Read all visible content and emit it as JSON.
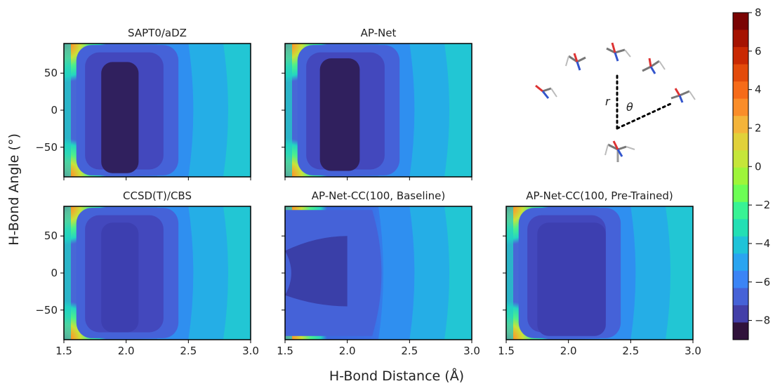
{
  "figure": {
    "xlabel": "H-Bond Distance (Å)",
    "ylabel": "H-Bond Angle (°)",
    "inset_labels": {
      "r": "r",
      "theta": "θ"
    }
  },
  "chart_data": [
    {
      "type": "heatmap",
      "title": "SAPT0/aDZ",
      "xlim": [
        1.5,
        3.0
      ],
      "ylim": [
        -90,
        90
      ],
      "x_ticks": [
        "1.5",
        "2.0",
        "2.5",
        "3.0"
      ],
      "x_ticks_shown": false,
      "y_ticks": [
        "50",
        "0",
        "−50"
      ],
      "y_ticks_shown": true,
      "min_level_region": {
        "x": [
          1.8,
          2.1
        ],
        "y": [
          -85,
          65
        ]
      }
    },
    {
      "type": "heatmap",
      "title": "AP-Net",
      "xlim": [
        1.5,
        3.0
      ],
      "ylim": [
        -90,
        90
      ],
      "x_ticks": [
        "1.5",
        "2.0",
        "2.5",
        "3.0"
      ],
      "x_ticks_shown": false,
      "y_ticks": [
        "50",
        "0",
        "−50"
      ],
      "y_ticks_shown": false,
      "min_level_region": {
        "x": [
          1.78,
          2.1
        ],
        "y": [
          -82,
          70
        ]
      }
    },
    {
      "type": "heatmap",
      "title": "CCSD(T)/CBS",
      "xlim": [
        1.5,
        3.0
      ],
      "ylim": [
        -90,
        90
      ],
      "x_ticks": [
        "1.5",
        "2.0",
        "2.5",
        "3.0"
      ],
      "x_ticks_shown": true,
      "y_ticks": [
        "50",
        "0",
        "−50"
      ],
      "y_ticks_shown": true,
      "min_level_region": {
        "x": [
          1.8,
          2.1
        ],
        "y": [
          -80,
          68
        ]
      }
    },
    {
      "type": "heatmap",
      "title": "AP-Net-CC(100, Baseline)",
      "xlim": [
        1.5,
        3.0
      ],
      "ylim": [
        -90,
        90
      ],
      "x_ticks": [
        "1.5",
        "2.0",
        "2.5",
        "3.0"
      ],
      "x_ticks_shown": true,
      "y_ticks": [
        "50",
        "0",
        "−50"
      ],
      "y_ticks_shown": false,
      "min_level_region": {
        "x": [
          1.5,
          2.0
        ],
        "y": [
          -45,
          50
        ]
      }
    },
    {
      "type": "heatmap",
      "title": "AP-Net-CC(100, Pre-Trained)",
      "xlim": [
        1.5,
        3.0
      ],
      "ylim": [
        -90,
        90
      ],
      "x_ticks": [
        "1.5",
        "2.0",
        "2.5",
        "3.0"
      ],
      "x_ticks_shown": true,
      "y_ticks": [
        "50",
        "0",
        "−50"
      ],
      "y_ticks_shown": false,
      "min_level_region": {
        "x": [
          1.75,
          2.3
        ],
        "y": [
          -85,
          68
        ]
      }
    }
  ],
  "colorbar": {
    "range": [
      -9,
      8
    ],
    "ticks": [
      "8",
      "6",
      "4",
      "2",
      "0",
      "−2",
      "−4",
      "−6",
      "−8"
    ],
    "tick_values": [
      8,
      6,
      4,
      2,
      0,
      -2,
      -4,
      -6,
      -8
    ],
    "colors": [
      "#7a0403",
      "#a51301",
      "#c92903",
      "#e34b0b",
      "#f66b19",
      "#fa8d29",
      "#f4b43a",
      "#e1d13a",
      "#c5e63a",
      "#9ef53a",
      "#6cfe55",
      "#38f394",
      "#23dfb4",
      "#1fc3d8",
      "#29a4f0",
      "#3b84f5",
      "#4662d7",
      "#433fa8",
      "#30123b"
    ]
  }
}
